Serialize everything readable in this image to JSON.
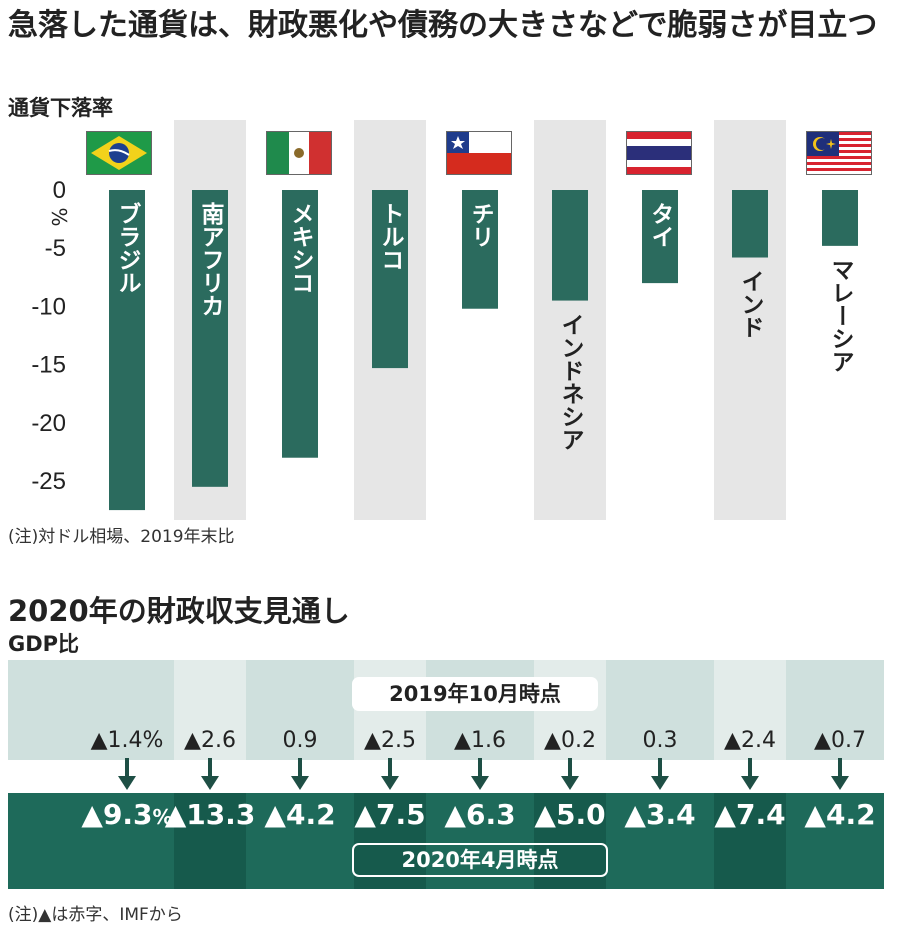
{
  "title": "急落した通貨は、財政悪化や債務の大きさなどで脆弱さが目立つ",
  "chart_data": {
    "type": "bar",
    "title": "通貨下落率",
    "ylabel": "%",
    "categories": [
      "ブラジル",
      "南アフリカ",
      "メキシコ",
      "トルコ",
      "チリ",
      "インドネシア",
      "タイ",
      "インド",
      "マレーシア"
    ],
    "values": [
      -27.5,
      -25.5,
      -23.0,
      -15.3,
      -10.2,
      -9.5,
      -8.0,
      -5.8,
      -4.8
    ],
    "ylim": [
      -27.5,
      0
    ],
    "yticks": [
      0,
      -5,
      -10,
      -15,
      -20,
      -25
    ],
    "yticklabels": [
      "0",
      "-5",
      "-10",
      "-15",
      "-20",
      "-25"
    ],
    "note": "(注)対ドル相場、2019年末比"
  },
  "fiscal": {
    "title": "2020年の財政収支見通し",
    "unit": "GDP比",
    "label_2019": "2019年10月時点",
    "label_2020": "2020年4月時点",
    "values_2019": [
      "▲1.4%",
      "▲2.6",
      "0.9",
      "▲2.5",
      "▲1.6",
      "▲0.2",
      "0.3",
      "▲2.4",
      "▲0.7"
    ],
    "values_2020": [
      "▲9.3",
      "▲13.3",
      "▲4.2",
      "▲7.5",
      "▲6.3",
      "▲5.0",
      "▲3.4",
      "▲7.4",
      "▲4.2"
    ],
    "first_2020_suffix": "%",
    "note": "(注)▲は赤字、IMFから"
  },
  "flags": [
    "brazil-flag-icon",
    "south-africa-flag-icon",
    "mexico-flag-icon",
    "turkey-flag-icon",
    "chile-flag-icon",
    "indonesia-flag-icon",
    "thailand-flag-icon",
    "india-flag-icon",
    "malaysia-flag-icon"
  ],
  "colors": {
    "bar": "#2b6b5e",
    "stripe": "#e6e6e6",
    "band_top": "#cfe0dd",
    "band_bottom": "#1e6a5a"
  }
}
